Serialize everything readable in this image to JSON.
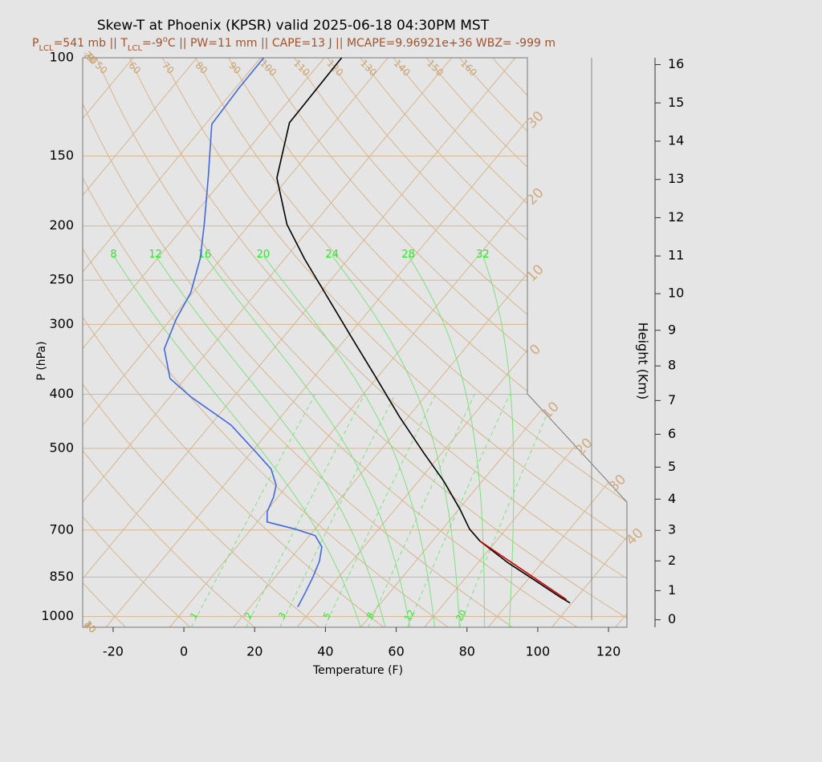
{
  "chart_data": {
    "type": "skewt",
    "title": "Skew-T at Phoenix (KPSR) valid 2025-06-18 04:30PM MST",
    "subtitle": [
      {
        "text": "P"
      },
      {
        "sub": "LCL"
      },
      {
        "text": "=541 mb || T"
      },
      {
        "sub": "LCL"
      },
      {
        "text": "=-9"
      },
      {
        "sup": "o"
      },
      {
        "text": "C || PW=11 mm || CAPE=13 J || MCAPE=9.96921e+36 WBZ= -999 m"
      }
    ],
    "x_label": "Temperature (F)",
    "y_label": "P (hPa)",
    "y2_label": "Height (Km)",
    "xlim": [
      -28.6,
      125.2
    ],
    "xticks": [
      -20,
      0,
      20,
      40,
      60,
      80,
      100,
      120
    ],
    "ylim": [
      1045,
      100
    ],
    "log_y": true,
    "yticks": [
      100,
      150,
      200,
      250,
      300,
      400,
      500,
      700,
      850,
      1000
    ],
    "y2ticks": [
      0,
      1,
      2,
      3,
      4,
      5,
      6,
      7,
      8,
      9,
      10,
      11,
      12,
      13,
      14,
      15,
      16
    ],
    "grid": true,
    "dry_adiabat_labels_top": [
      50,
      60,
      70,
      80,
      90,
      100,
      110,
      120,
      130,
      140,
      150,
      160
    ],
    "dry_adiabat_labels_left": [
      40,
      30,
      20,
      10,
      0,
      -10,
      {
        "value": -20,
        "label": "20"
      },
      {
        "value": -30,
        "label": "30"
      }
    ],
    "isotherm_labels": [
      {
        "value": -30,
        "label": "30"
      },
      {
        "value": -20,
        "label": "20"
      },
      {
        "value": -10,
        "label": "10"
      },
      0,
      10,
      20,
      30,
      40
    ],
    "moist_adiabat_labels": [
      8,
      12,
      16,
      20,
      24,
      28,
      32
    ],
    "mixing_ratio_labels": [
      1,
      2,
      3,
      5,
      8,
      12,
      20
    ],
    "series": [
      {
        "color": "#000000",
        "pressure": [
          100,
          130.7,
          164.1,
          198.8,
          229.2,
          267.6,
          315.7,
          372.4,
          439.3,
          509.7,
          572.1,
          642.4,
          697.5,
          733.1,
          801.4,
          864.8,
          923.9,
          945.4
        ],
        "values": [
          -89.1,
          -88.6,
          -79.2,
          -65.4,
          -52.3,
          -37.1,
          -20.9,
          -4.6,
          11.6,
          26.9,
          39.1,
          50.3,
          57.7,
          63.5,
          76.5,
          88.8,
          99.4,
          103.4
        ]
      },
      {
        "color": "#4169e1",
        "pressure": [
          100,
          113.4,
          131.5,
          163.1,
          198.8,
          228.4,
          263.3,
          293.6,
          331.7,
          375,
          404.5,
          454,
          509.7,
          544.5,
          581.7,
          611.2,
          648.8,
          677.2,
          697.5,
          716.4,
          750.3,
          796.2,
          850.6,
          902.7,
          961.2
        ],
        "values": [
          -111.1,
          -111,
          -110.2,
          -98.9,
          -88.8,
          -82,
          -76.6,
          -74.5,
          -70.9,
          -62.3,
          -52.1,
          -34.2,
          -20.3,
          -12.5,
          -7.3,
          -5.2,
          -3.6,
          -1.2,
          8.5,
          15.6,
          20.1,
          22.8,
          24.7,
          26.1,
          27.4
        ]
      },
      {
        "color": "#cc0000",
        "pressure": [
          733.1,
          933.1
        ],
        "values": [
          63.5,
          101.7
        ]
      }
    ]
  }
}
